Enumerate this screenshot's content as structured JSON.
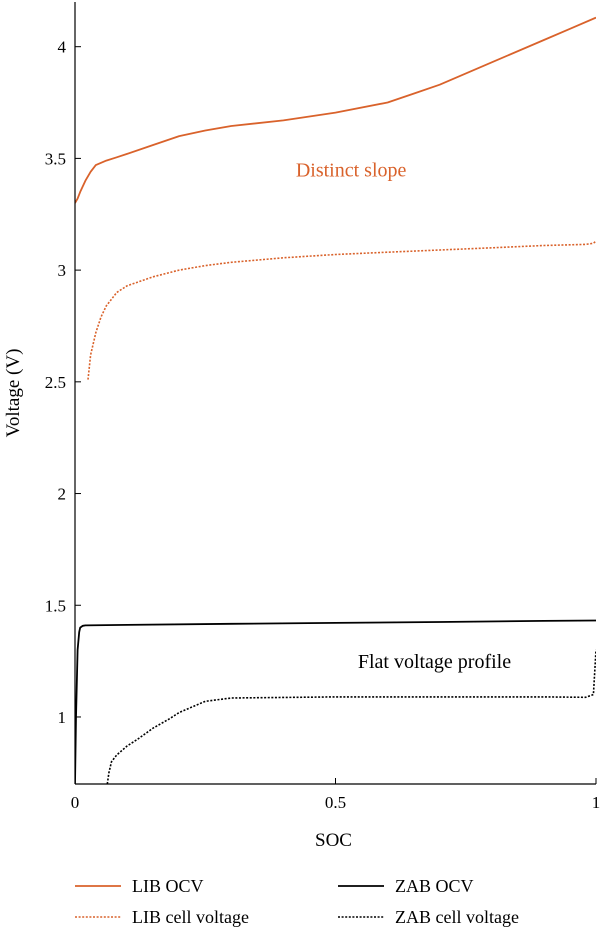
{
  "chart_data": {
    "type": "line",
    "xlabel": "SOC",
    "ylabel": "Voltage (V)",
    "xlim": [
      0,
      1
    ],
    "ylim": [
      0.7,
      4.2
    ],
    "xticks": [
      0,
      0.5,
      1
    ],
    "xtick_labels": [
      "0",
      "0.5",
      "1"
    ],
    "yticks": [
      1,
      1.5,
      2,
      2.5,
      3,
      3.5,
      4
    ],
    "ytick_labels": [
      "1",
      "1.5",
      "2",
      "2.5",
      "3",
      "3.5",
      "4"
    ],
    "grid": false,
    "legend_position": "bottom",
    "series": [
      {
        "name": "LIB OCV",
        "color": "#d9622b",
        "style": "solid",
        "x": [
          0,
          0.005,
          0.01,
          0.02,
          0.03,
          0.04,
          0.06,
          0.08,
          0.1,
          0.15,
          0.2,
          0.25,
          0.3,
          0.4,
          0.5,
          0.6,
          0.65,
          0.7,
          0.8,
          0.9,
          0.95,
          1.0
        ],
        "y": [
          3.3,
          3.32,
          3.35,
          3.4,
          3.44,
          3.47,
          3.49,
          3.505,
          3.52,
          3.56,
          3.6,
          3.625,
          3.645,
          3.67,
          3.705,
          3.75,
          3.79,
          3.83,
          3.93,
          4.03,
          4.08,
          4.13
        ]
      },
      {
        "name": "LIB cell voltage",
        "color": "#d9622b",
        "style": "dotted",
        "x": [
          0.025,
          0.03,
          0.04,
          0.05,
          0.06,
          0.08,
          0.1,
          0.15,
          0.2,
          0.25,
          0.3,
          0.4,
          0.5,
          0.6,
          0.7,
          0.8,
          0.9,
          0.98,
          0.995,
          1.0
        ],
        "y": [
          2.51,
          2.62,
          2.72,
          2.79,
          2.84,
          2.9,
          2.93,
          2.97,
          3.0,
          3.02,
          3.035,
          3.055,
          3.07,
          3.08,
          3.09,
          3.1,
          3.11,
          3.115,
          3.12,
          3.13
        ]
      },
      {
        "name": "ZAB OCV",
        "color": "#000000",
        "style": "solid",
        "x": [
          0.0,
          0.002,
          0.005,
          0.008,
          0.01,
          0.015,
          0.02,
          0.1,
          0.3,
          0.5,
          0.7,
          0.9,
          1.0
        ],
        "y": [
          0.7,
          1.0,
          1.3,
          1.38,
          1.4,
          1.408,
          1.41,
          1.412,
          1.417,
          1.421,
          1.425,
          1.43,
          1.432
        ]
      },
      {
        "name": "ZAB cell voltage",
        "color": "#000000",
        "style": "dotted",
        "x": [
          0.062,
          0.065,
          0.07,
          0.08,
          0.1,
          0.12,
          0.15,
          0.18,
          0.2,
          0.25,
          0.3,
          0.5,
          0.7,
          0.9,
          0.98,
          0.995,
          1.0
        ],
        "y": [
          0.7,
          0.75,
          0.8,
          0.83,
          0.87,
          0.9,
          0.95,
          0.99,
          1.02,
          1.07,
          1.085,
          1.09,
          1.09,
          1.09,
          1.088,
          1.1,
          1.3
        ]
      }
    ],
    "annotations": [
      {
        "text": "Distinct slope",
        "x": 0.53,
        "y": 3.42,
        "color": "#d9622b"
      },
      {
        "text": "Flat voltage profile",
        "x": 0.69,
        "y": 1.22,
        "color": "#000000"
      }
    ]
  }
}
